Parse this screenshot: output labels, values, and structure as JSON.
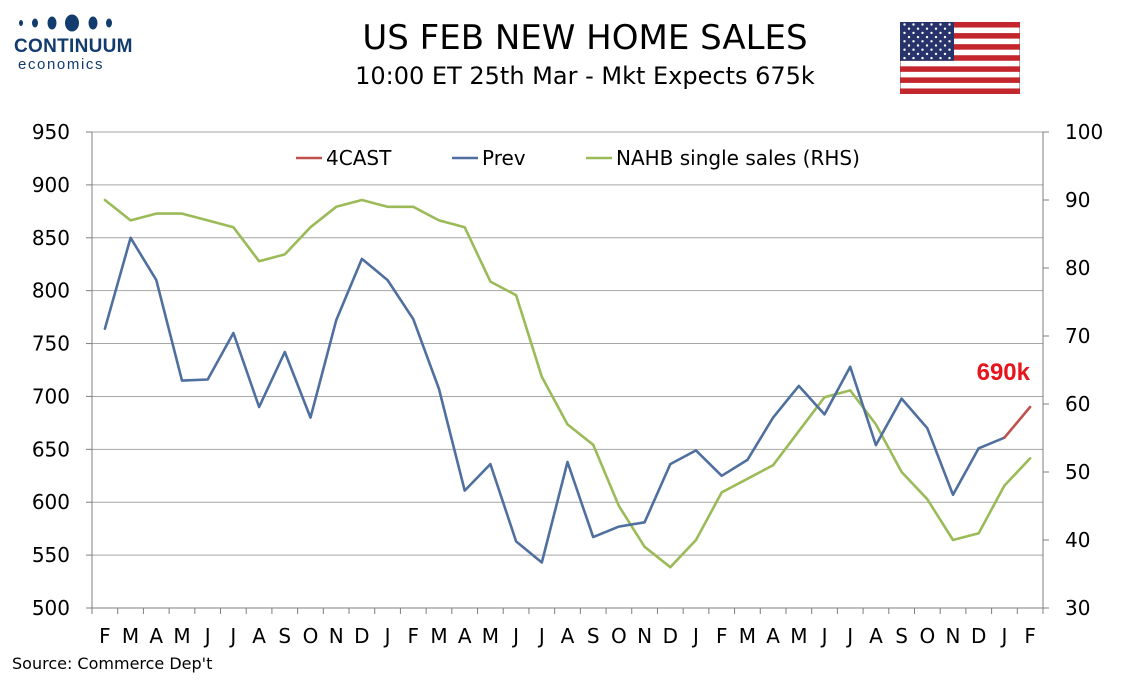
{
  "branding": {
    "name": "CONTINUUM",
    "sub": "economics"
  },
  "header": {
    "title": "US FEB NEW HOME SALES",
    "subtitle": "10:00 ET 25th Mar - Mkt Expects 675k"
  },
  "icons": {
    "flag": "us-flag-icon",
    "logo": "logo-dots-icon"
  },
  "colors": {
    "forecast": "#c0504d",
    "prev": "#4f6f9f",
    "nahb": "#9bbb59",
    "callout": "#e8141c",
    "logo": "#123c6e"
  },
  "source": "Source: Commerce Dep't",
  "chart_data": {
    "type": "line",
    "categories": [
      "F",
      "M",
      "A",
      "M",
      "J",
      "J",
      "A",
      "S",
      "O",
      "N",
      "D",
      "J",
      "F",
      "M",
      "A",
      "M",
      "J",
      "J",
      "A",
      "S",
      "O",
      "N",
      "D",
      "J",
      "F",
      "M",
      "A",
      "M",
      "J",
      "J",
      "A",
      "S",
      "O",
      "N",
      "D",
      "J",
      "F"
    ],
    "y_left": {
      "min": 500,
      "max": 950,
      "ticks": [
        500,
        550,
        600,
        650,
        700,
        750,
        800,
        850,
        900,
        950
      ]
    },
    "y_right": {
      "min": 30,
      "max": 100,
      "ticks": [
        30,
        40,
        50,
        60,
        70,
        80,
        90,
        100
      ]
    },
    "grid": true,
    "legend": "top-center",
    "series": [
      {
        "name": "4CAST",
        "axis": "left",
        "color": "#c0504d",
        "values": [
          null,
          null,
          null,
          null,
          null,
          null,
          null,
          null,
          null,
          null,
          null,
          null,
          null,
          null,
          null,
          null,
          null,
          null,
          null,
          null,
          null,
          null,
          null,
          null,
          null,
          null,
          null,
          null,
          null,
          null,
          null,
          null,
          null,
          null,
          null,
          661,
          690
        ]
      },
      {
        "name": "Prev",
        "axis": "left",
        "color": "#4f6f9f",
        "values": [
          764,
          850,
          810,
          715,
          716,
          760,
          690,
          742,
          680,
          772,
          830,
          810,
          773,
          707,
          611,
          636,
          563,
          543,
          638,
          567,
          577,
          581,
          636,
          649,
          625,
          640,
          680,
          710,
          683,
          728,
          654,
          698,
          670,
          607,
          651,
          661,
          null
        ]
      },
      {
        "name": "NAHB single sales (RHS)",
        "axis": "right",
        "color": "#9bbb59",
        "values": [
          90,
          87,
          88,
          88,
          87,
          86,
          81,
          82,
          86,
          89,
          90,
          89,
          89,
          87,
          86,
          78,
          76,
          64,
          57,
          54,
          45,
          39,
          36,
          40,
          47,
          49,
          51,
          56,
          61,
          62,
          57,
          50,
          46,
          40,
          41,
          48,
          52
        ]
      }
    ],
    "annotation": {
      "text": "690k",
      "color": "#e8141c"
    }
  }
}
